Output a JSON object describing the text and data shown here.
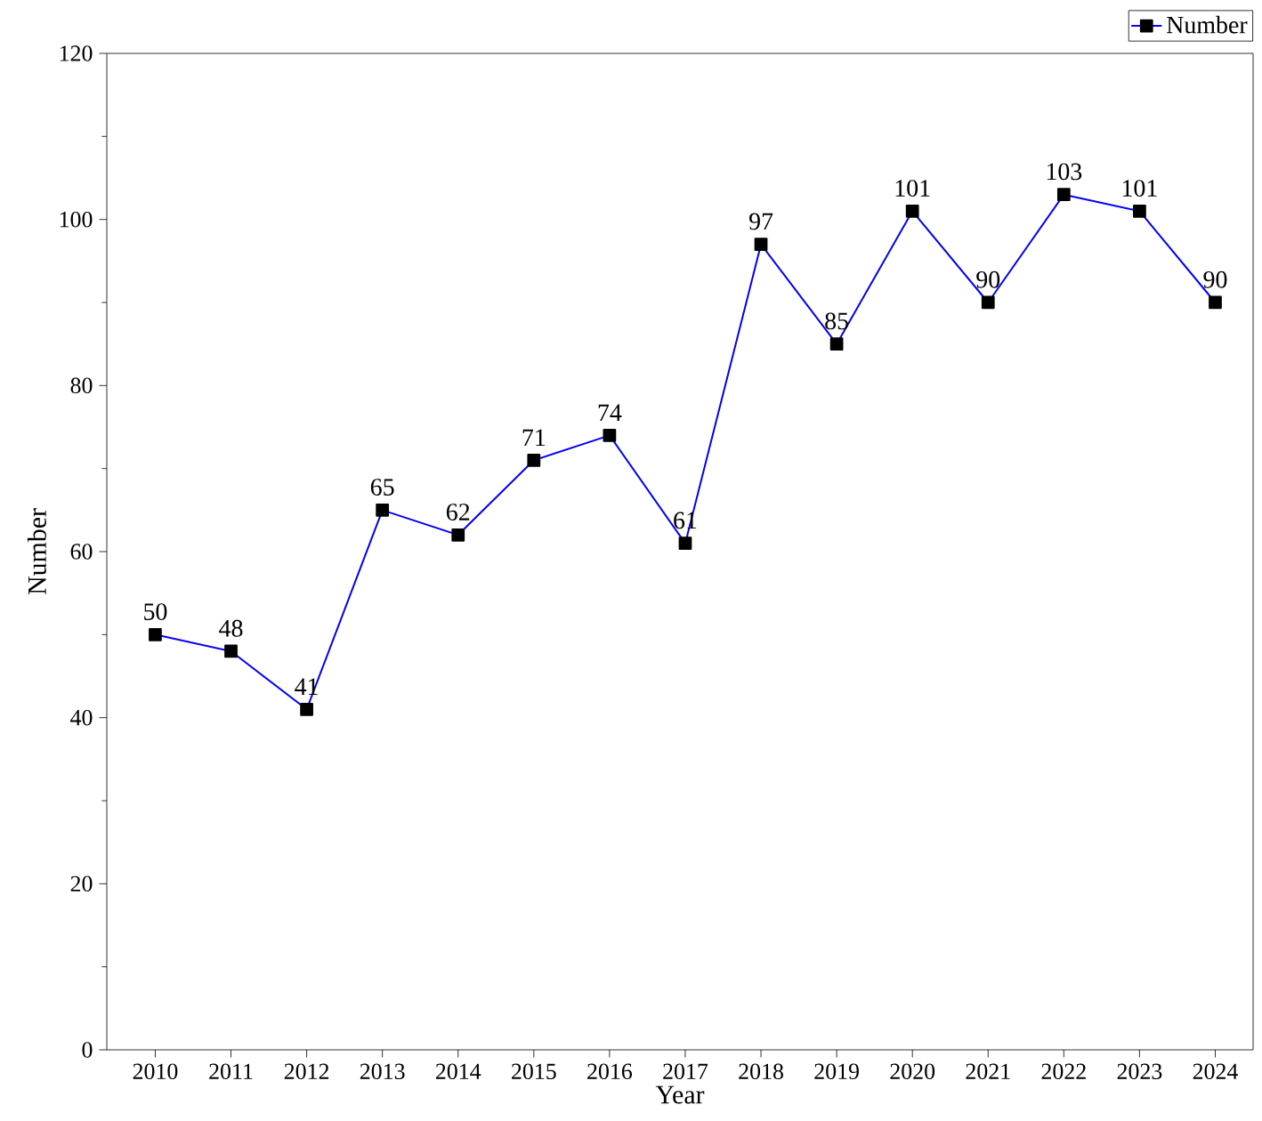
{
  "chart_data": {
    "type": "line",
    "xlabel": "Year",
    "ylabel": "Number",
    "categories": [
      "2010",
      "2011",
      "2012",
      "2013",
      "2014",
      "2015",
      "2016",
      "2017",
      "2018",
      "2019",
      "2020",
      "2021",
      "2022",
      "2023",
      "2024"
    ],
    "series": [
      {
        "name": "Number",
        "color": "#0000ff",
        "values": [
          50,
          48,
          41,
          65,
          62,
          71,
          74,
          61,
          97,
          85,
          101,
          90,
          103,
          101,
          90
        ]
      }
    ],
    "ylim": [
      0,
      120
    ],
    "yticks": [
      0,
      20,
      40,
      60,
      80,
      100,
      120
    ],
    "marker": "square",
    "line_style": "solid",
    "data_labels": true,
    "legend": "top right",
    "grid": false
  }
}
